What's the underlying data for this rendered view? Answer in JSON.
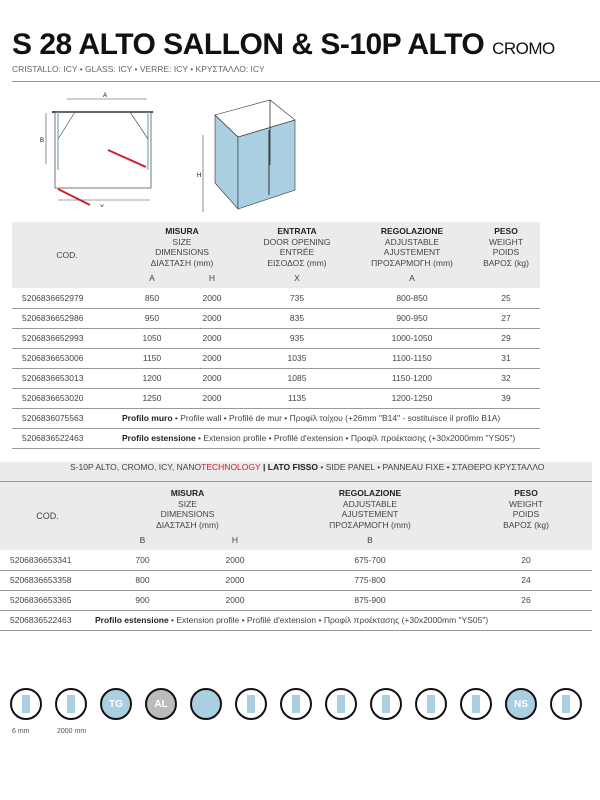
{
  "header": {
    "title": "S 28 ALTO SALLON & S-10P ALTO",
    "title_suffix": "CROMO",
    "subtitle": "CRISTALLO: ICY • GLASS: ICY • VERRE: ICY • ΚΡΥΣΤΑΛΛΟ: ICY"
  },
  "diagram": {
    "labels": {
      "a": "A",
      "b": "B",
      "x": "X",
      "h": "H"
    }
  },
  "table1": {
    "headers": {
      "cod": "COD.",
      "misura": [
        "MISURA",
        "SIZE",
        "DIMENSIONS",
        "ΔΙΑΣΤΑΣΗ (mm)"
      ],
      "entrata": [
        "ENTRATA",
        "DOOR OPENING",
        "ENTRÉE",
        "ΕΙΣΟΔΟΣ (mm)"
      ],
      "regolazione": [
        "REGOLAZIONE",
        "ADJUSTABLE",
        "AJUSTEMENT",
        "ΠΡΟΣΑΡΜΟΓΗ (mm)"
      ],
      "peso": [
        "PESO",
        "WEIGHT",
        "POIDS",
        "ΒΑΡΟΣ (kg)"
      ],
      "sub": [
        "A",
        "H",
        "X",
        "A"
      ]
    },
    "rows": [
      [
        "5206836652979",
        "850",
        "2000",
        "735",
        "800-850",
        "25"
      ],
      [
        "5206836652986",
        "950",
        "2000",
        "835",
        "900-950",
        "27"
      ],
      [
        "5206836652993",
        "1050",
        "2000",
        "935",
        "1000-1050",
        "29"
      ],
      [
        "5206836653006",
        "1150",
        "2000",
        "1035",
        "1100-1150",
        "31"
      ],
      [
        "5206836653013",
        "1200",
        "2000",
        "1085",
        "1150-1200",
        "32"
      ],
      [
        "5206836653020",
        "1250",
        "2000",
        "1135",
        "1200-1250",
        "39"
      ]
    ],
    "notes": [
      {
        "cod": "5206836075563",
        "bold": "Profilo muro",
        "text": " • Profile wall • Profilé de mur • Προφίλ τοίχου (+26mm \"B14\" - sostituisce il profilo B1A)"
      },
      {
        "cod": "5206836522463",
        "bold": "Profilo estensione",
        "text": " • Extension profile • Profilé d'extension • Προφίλ προέκτασης (+30x2000mm \"YS05\")"
      }
    ]
  },
  "table2": {
    "title_a": "S-10P ALTO, CROMO, ICY, NANO",
    "title_red": "TECHNOLOGY",
    "title_b": " | LATO FISSO",
    "title_c": " • SIDE PANEL • PANNEAU FIXE • ΣΤΑΘΕΡΟ ΚΡΥΣΤΑΛΛΟ",
    "headers": {
      "cod": "COD.",
      "misura": [
        "MISURA",
        "SIZE",
        "DIMENSIONS",
        "ΔΙΑΣΤΑΣΗ (mm)"
      ],
      "regolazione": [
        "REGOLAZIONE",
        "ADJUSTABLE",
        "AJUSTEMENT",
        "ΠΡΟΣΑΡΜΟΓΗ (mm)"
      ],
      "peso": [
        "PESO",
        "WEIGHT",
        "POIDS",
        "ΒΑΡΟΣ (kg)"
      ],
      "sub": [
        "B",
        "H",
        "B"
      ]
    },
    "rows": [
      [
        "5206836653341",
        "700",
        "2000",
        "675-700",
        "20"
      ],
      [
        "5206836653358",
        "800",
        "2000",
        "775-800",
        "24"
      ],
      [
        "5206836653365",
        "900",
        "2000",
        "875-900",
        "26"
      ]
    ],
    "notes": [
      {
        "cod": "5206836522463",
        "bold": "Profilo estensione",
        "text": " • Extension profile • Profilé d'extension • Προφίλ προέκτασης (+30x2000mm \"YS05\")"
      }
    ]
  },
  "icons": {
    "items": [
      "glass-thickness-icon",
      "height-icon",
      "tempered-glass-icon",
      "aluminium-icon",
      "safety-film-icon",
      "reversible-icon",
      "sliding-icon",
      "magnetic-closure-icon",
      "pivot-icon",
      "lift-hinge-icon",
      "custom-cut-icon",
      "nano-shield-icon",
      "shower-tray-icon"
    ],
    "labels": [
      "6 mm",
      "2000 mm"
    ],
    "text": {
      "tg": "TG",
      "al": "AL",
      "ns": "NS"
    }
  },
  "colors": {
    "accent_red": "#d0202a",
    "glass_blue": "#a9cfe0",
    "header_gray": "#ebebeb"
  }
}
